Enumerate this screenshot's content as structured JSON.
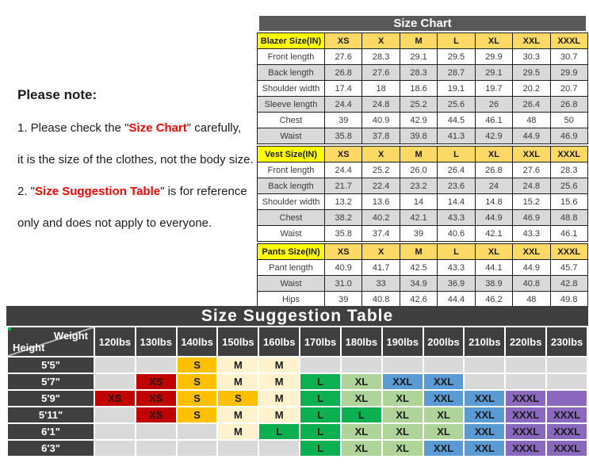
{
  "note": {
    "title": "Please note:",
    "line1_pre": "1. Please check the \"",
    "line1_highlight": "Size Chart",
    "line1_post": "\" carefully,",
    "line2": "it is the size of the clothes, not the body size.",
    "line3_pre": "2. \"",
    "line3_highlight": "Size Suggestion Table",
    "line3_post": "\" is for reference",
    "line4": "only and does not apply to everyone."
  },
  "size_chart": {
    "title": "Size Chart",
    "sizes": [
      "XS",
      "X",
      "M",
      "L",
      "XL",
      "XXL",
      "XXXL"
    ],
    "sections": [
      {
        "label": "Blazer Size(IN)",
        "rows": [
          {
            "label": "Front length",
            "values": [
              "27.6",
              "28.3",
              "29.1",
              "29.5",
              "29.9",
              "30.3",
              "30.7"
            ]
          },
          {
            "label": "Back length",
            "values": [
              "26.8",
              "27.6",
              "28.3",
              "28.7",
              "29.1",
              "29.5",
              "29.9"
            ]
          },
          {
            "label": "Shoulder width",
            "values": [
              "17.4",
              "18",
              "18.6",
              "19.1",
              "19.7",
              "20.2",
              "20.7"
            ]
          },
          {
            "label": "Sleeve length",
            "values": [
              "24.4",
              "24.8",
              "25.2",
              "25.6",
              "26",
              "26.4",
              "26.8"
            ]
          },
          {
            "label": "Chest",
            "values": [
              "39",
              "40.9",
              "42.9",
              "44.5",
              "46.1",
              "48",
              "50"
            ]
          },
          {
            "label": "Waist",
            "values": [
              "35.8",
              "37.8",
              "39.8",
              "41.3",
              "42.9",
              "44.9",
              "46.9"
            ]
          }
        ]
      },
      {
        "label": "Vest Size(IN)",
        "rows": [
          {
            "label": "Front length",
            "values": [
              "24.4",
              "25.2",
              "26.0",
              "26.4",
              "26.8",
              "27.6",
              "28.3"
            ]
          },
          {
            "label": "Back length",
            "values": [
              "21.7",
              "22.4",
              "23.2",
              "23.6",
              "24",
              "24.8",
              "25.6"
            ]
          },
          {
            "label": "Shoulder width",
            "values": [
              "13.2",
              "13.6",
              "14",
              "14.4",
              "14.8",
              "15.2",
              "15.6"
            ]
          },
          {
            "label": "Chest",
            "values": [
              "38.2",
              "40.2",
              "42.1",
              "43.3",
              "44.9",
              "46.9",
              "48.8"
            ]
          },
          {
            "label": "Waist",
            "values": [
              "35.8",
              "37.4",
              "39",
              "40.6",
              "42.1",
              "43.3",
              "46.1"
            ]
          }
        ]
      },
      {
        "label": "Pants Size(IN)",
        "rows": [
          {
            "label": "Pant length",
            "values": [
              "40.9",
              "41.7",
              "42.5",
              "43.3",
              "44.1",
              "44.9",
              "45.7"
            ]
          },
          {
            "label": "Waist",
            "values": [
              "31.0",
              "33",
              "34.9",
              "36.9",
              "38.9",
              "40.8",
              "42.8"
            ]
          },
          {
            "label": "Hips",
            "values": [
              "39",
              "40.8",
              "42.6",
              "44.4",
              "46.2",
              "48",
              "49.8"
            ]
          }
        ]
      }
    ]
  },
  "suggestion_table": {
    "title": "Size Suggestion Table",
    "corner": {
      "weight": "Weight",
      "height": "Height"
    },
    "weights": [
      "120lbs",
      "130lbs",
      "140lbs",
      "150lbs",
      "160lbs",
      "170lbs",
      "180lbs",
      "190lbs",
      "200lbs",
      "210lbs",
      "220lbs",
      "230lbs"
    ],
    "rows": [
      {
        "height": "5'5\"",
        "labels": [
          "",
          "",
          "S",
          "M",
          "M",
          "",
          "",
          "",
          "",
          "",
          "",
          ""
        ],
        "colors": [
          "",
          "",
          "S",
          "M",
          "M",
          "",
          "",
          "",
          "",
          "",
          "",
          ""
        ]
      },
      {
        "height": "5'7\"",
        "labels": [
          "",
          "XS",
          "S",
          "M",
          "M",
          "L",
          "XL",
          "XXL",
          "XXL",
          "",
          "",
          ""
        ],
        "colors": [
          "",
          "XS",
          "S",
          "M",
          "M",
          "L",
          "XL",
          "XXL",
          "XXL",
          "",
          "",
          ""
        ]
      },
      {
        "height": "5'9\"",
        "labels": [
          "XS",
          "XS",
          "S",
          "S",
          "M",
          "L",
          "XL",
          "XL",
          "XXL",
          "XXL",
          "XXXL",
          ""
        ],
        "colors": [
          "XS",
          "XS",
          "S",
          "S",
          "M",
          "L",
          "XL",
          "XL",
          "XXL",
          "XXL",
          "XXXL",
          "XXXL"
        ]
      },
      {
        "height": "5'11\"",
        "labels": [
          "",
          "XS",
          "S",
          "M",
          "M",
          "L",
          "L",
          "XL",
          "XL",
          "XXL",
          "XXXL",
          "XXXL"
        ],
        "colors": [
          "",
          "XS",
          "S",
          "M",
          "M",
          "L",
          "L",
          "XL",
          "XL",
          "XXL",
          "XXXL",
          "XXXL"
        ]
      },
      {
        "height": "6'1\"",
        "labels": [
          "",
          "",
          "",
          "M",
          "L",
          "L",
          "XL",
          "XL",
          "XL",
          "XXL",
          "XXXL",
          "XXXL"
        ],
        "colors": [
          "",
          "",
          "",
          "M",
          "L",
          "L",
          "XL",
          "XL",
          "XL",
          "XXL",
          "XXXL",
          "XXXL"
        ]
      },
      {
        "height": "6'3\"",
        "labels": [
          "",
          "",
          "",
          "",
          "",
          "L",
          "XL",
          "XL",
          "XXL",
          "XXL",
          "XXXL",
          "XXXL"
        ],
        "colors": [
          "",
          "",
          "",
          "",
          "",
          "L",
          "XL",
          "XL",
          "XXL",
          "XXL",
          "XXXL",
          "XXXL"
        ]
      }
    ]
  },
  "colors": {
    "XS": "#c00000",
    "S": "#ffc000",
    "M": "#fff2cc",
    "L": "#0cb050",
    "XL": "#aed49a",
    "XXL": "#5b9bd5",
    "XXXL": "#8b68bf",
    "empty": "#d9d9d9",
    "header_dark": "#3f3f3f",
    "chart_title_bar": "#595959",
    "section_label_yellow": "#ffff00",
    "size_header_orange": "#ffd966",
    "note_highlight_red": "#fe0000"
  }
}
